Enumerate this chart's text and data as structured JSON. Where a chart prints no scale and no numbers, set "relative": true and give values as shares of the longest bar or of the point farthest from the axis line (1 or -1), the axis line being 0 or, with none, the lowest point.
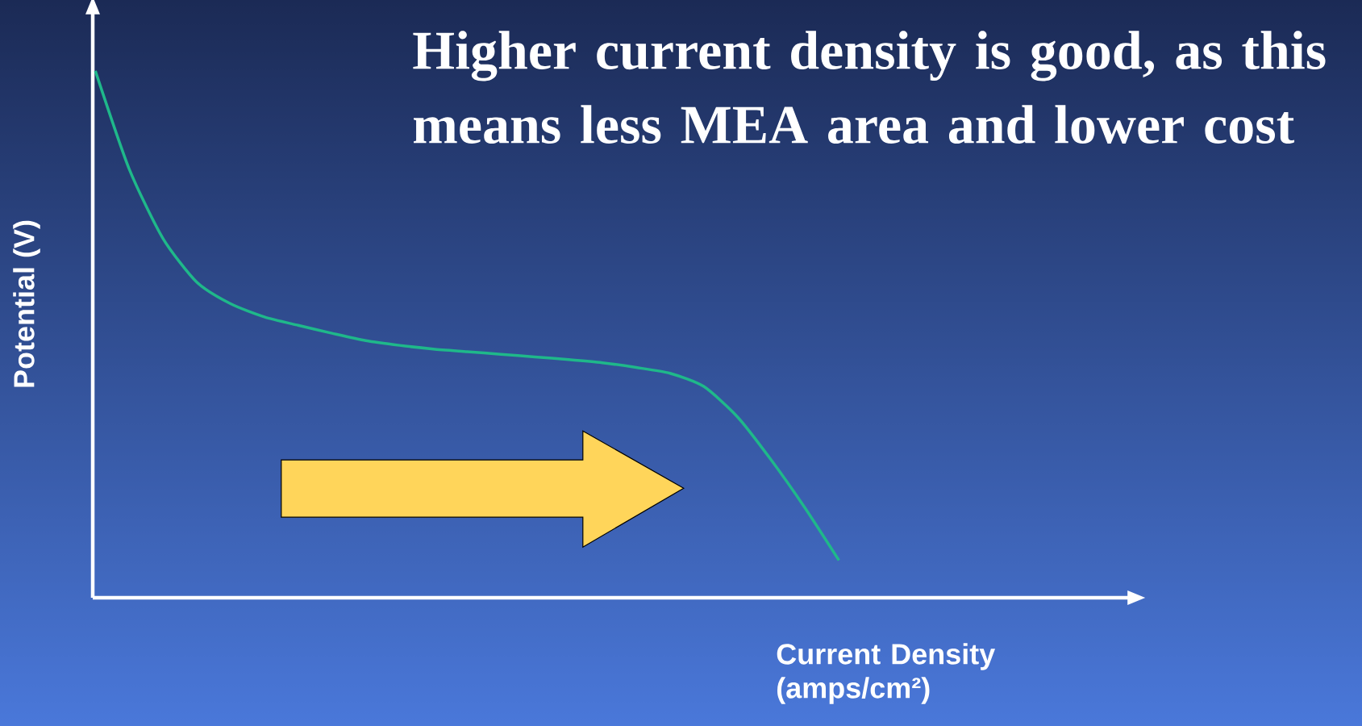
{
  "chart_data": {
    "type": "line",
    "title": "Higher current density is good, as this means less MEA area and lower cost",
    "xlabel": "Current Density (amps/cm²)",
    "ylabel": "Potential (V)",
    "relative": true,
    "color": "#1fb88a",
    "categories": [
      null,
      null,
      null,
      null,
      null,
      null,
      null,
      null,
      null,
      null,
      null,
      null,
      null,
      null,
      null,
      null,
      null,
      null,
      null,
      null,
      null,
      null,
      null
    ],
    "values": [
      1.0,
      0.814,
      0.682,
      0.599,
      0.558,
      0.533,
      0.517,
      0.502,
      0.488,
      0.479,
      0.472,
      0.467,
      0.462,
      0.457,
      0.452,
      0.446,
      0.437,
      0.426,
      0.401,
      0.343,
      0.261,
      0.17,
      0.071
    ]
  }
}
